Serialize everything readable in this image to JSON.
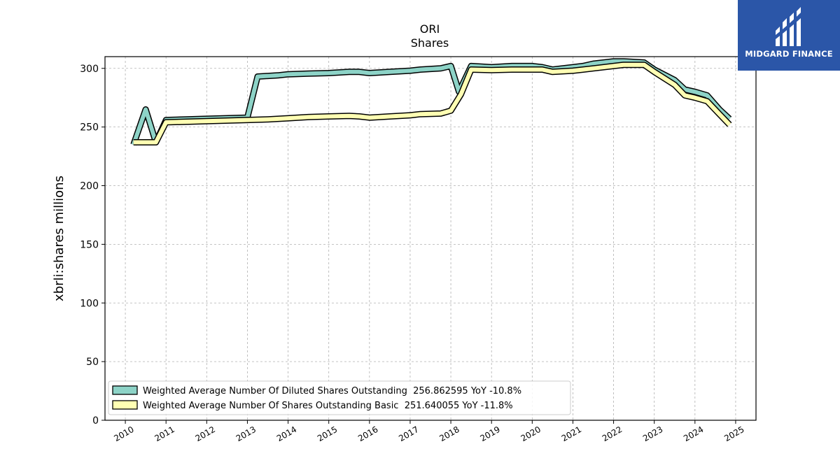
{
  "chart_data": {
    "type": "line",
    "title": "ORI",
    "subtitle": "Shares",
    "ylabel": "xbrli:shares millions",
    "xlim": [
      2009.5,
      2025.5
    ],
    "ylim": [
      0,
      310
    ],
    "yticks": [
      0,
      50,
      100,
      150,
      200,
      250,
      300
    ],
    "xticks": [
      "2010",
      "2011",
      "2012",
      "2013",
      "2014",
      "2015",
      "2016",
      "2017",
      "2018",
      "2019",
      "2020",
      "2021",
      "2022",
      "2023",
      "2024",
      "2025"
    ],
    "grid": true,
    "legend_position": "lower-left",
    "series": [
      {
        "name": "Weighted Average Number Of Diluted Shares Outstanding",
        "legend_label": "Weighted Average Number Of Diluted Shares Outstanding  256.862595 YoY -10.8%",
        "color": "#8dd3c7",
        "points": [
          [
            2010.2,
            235
          ],
          [
            2010.5,
            265
          ],
          [
            2010.75,
            237
          ],
          [
            2011.0,
            256
          ],
          [
            2012.0,
            257
          ],
          [
            2013.0,
            258
          ],
          [
            2013.25,
            293
          ],
          [
            2013.75,
            294
          ],
          [
            2014.0,
            295
          ],
          [
            2014.5,
            295.5
          ],
          [
            2015.0,
            296
          ],
          [
            2015.5,
            297
          ],
          [
            2015.75,
            297
          ],
          [
            2016.0,
            296
          ],
          [
            2016.5,
            297
          ],
          [
            2017.0,
            298
          ],
          [
            2017.25,
            299
          ],
          [
            2017.75,
            300
          ],
          [
            2018.0,
            302
          ],
          [
            2018.2,
            280
          ],
          [
            2018.5,
            302
          ],
          [
            2019.0,
            301
          ],
          [
            2019.5,
            302
          ],
          [
            2020.0,
            302
          ],
          [
            2020.25,
            301
          ],
          [
            2020.5,
            299
          ],
          [
            2021.0,
            301
          ],
          [
            2021.25,
            302
          ],
          [
            2021.5,
            304
          ],
          [
            2022.0,
            306
          ],
          [
            2022.25,
            306
          ],
          [
            2022.75,
            305
          ],
          [
            2023.0,
            299
          ],
          [
            2023.5,
            290
          ],
          [
            2023.75,
            282
          ],
          [
            2024.0,
            280
          ],
          [
            2024.3,
            277
          ],
          [
            2024.6,
            265
          ],
          [
            2024.85,
            257
          ]
        ]
      },
      {
        "name": "Weighted Average Number Of Shares Outstanding Basic",
        "legend_label": "Weighted Average Number Of Shares Outstanding Basic  251.640055 YoY -11.8%",
        "color": "#ffffb3",
        "points": [
          [
            2010.2,
            237
          ],
          [
            2010.5,
            237
          ],
          [
            2010.75,
            237
          ],
          [
            2011.0,
            254
          ],
          [
            2012.0,
            255
          ],
          [
            2013.0,
            256
          ],
          [
            2013.5,
            256.5
          ],
          [
            2014.0,
            257.5
          ],
          [
            2014.5,
            258.5
          ],
          [
            2015.0,
            259
          ],
          [
            2015.5,
            259.5
          ],
          [
            2015.75,
            259
          ],
          [
            2016.0,
            258
          ],
          [
            2016.5,
            259
          ],
          [
            2017.0,
            260
          ],
          [
            2017.25,
            261
          ],
          [
            2017.75,
            261.5
          ],
          [
            2018.0,
            264
          ],
          [
            2018.25,
            278
          ],
          [
            2018.5,
            299
          ],
          [
            2019.0,
            298.5
          ],
          [
            2019.5,
            299
          ],
          [
            2020.0,
            299
          ],
          [
            2020.25,
            299
          ],
          [
            2020.5,
            297
          ],
          [
            2021.0,
            298
          ],
          [
            2021.25,
            299
          ],
          [
            2021.5,
            300
          ],
          [
            2022.0,
            302
          ],
          [
            2022.25,
            303
          ],
          [
            2022.75,
            303
          ],
          [
            2023.0,
            297
          ],
          [
            2023.5,
            286
          ],
          [
            2023.75,
            277
          ],
          [
            2024.0,
            275
          ],
          [
            2024.3,
            272
          ],
          [
            2024.6,
            261
          ],
          [
            2024.85,
            252
          ]
        ]
      }
    ]
  },
  "logo": {
    "text": "MIDGARD FINANCE",
    "color": "#2b56a8"
  }
}
